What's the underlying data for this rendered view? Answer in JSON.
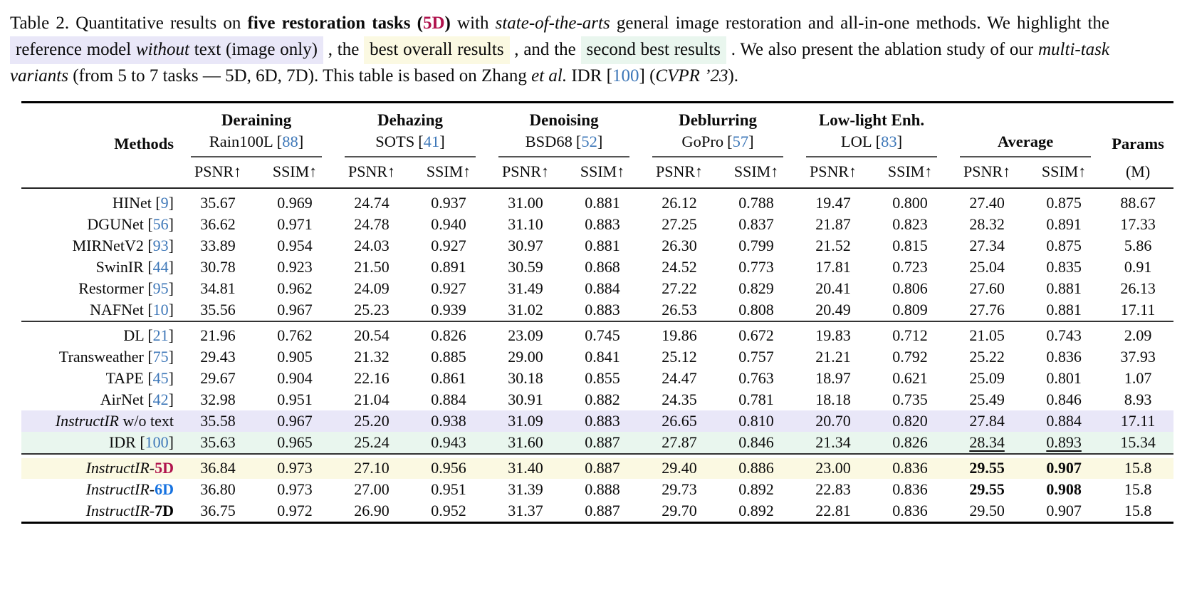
{
  "colors": {
    "highlight_reference": "#e9e7f8",
    "highlight_best": "#fbf9e2",
    "highlight_second": "#e9f6ee",
    "citation_blue": "#3d77b8",
    "red_5d": "#b0134d",
    "blue_6d": "#1672e0"
  },
  "strings": {
    "bracket_open": "[",
    "bracket_close": "]"
  },
  "caption": {
    "intro": "Table 2.  Quantitative results on ",
    "tasks_bold": "five restoration tasks (",
    "tasks_5d": "5D",
    "tasks_close": ")",
    "with_text": " with ",
    "sota_italic": "state-of-the-arts",
    "mid1": " general image restoration and all-in-one methods. We highlight the ",
    "ref_pre": "reference model ",
    "ref_italic": "without",
    "ref_post": " text (image only)",
    "mid2": " , the ",
    "best_text": "best overall results",
    "mid3": " , and the ",
    "second_text": "second best results",
    "mid4": " . We also present the ablation study of our ",
    "variants_italic": "multi-task variants",
    "mid5": " (from 5 to 7 tasks — 5D, 6D, 7D). This table is based on Zhang ",
    "etal_italic": "et al.",
    "mid6": " IDR ",
    "cite_open": "[",
    "cite_num": "100",
    "cite_close": "]",
    "mid7": " (",
    "cvpr_italic": "CVPR ’23",
    "end": ")."
  },
  "table": {
    "header": {
      "methods_label": "Methods",
      "psnr_label": "PSNR↑",
      "ssim_label": "SSIM↑",
      "average_label": "Average",
      "params_label": "Params",
      "params_unit": "(M)",
      "groups": [
        {
          "task": "Deraining",
          "dataset": "Rain100L",
          "cite_num": "88"
        },
        {
          "task": "Dehazing",
          "dataset": "SOTS",
          "cite_num": "41"
        },
        {
          "task": "Denoising",
          "dataset": "BSD68",
          "cite_num": "52"
        },
        {
          "task": "Deblurring",
          "dataset": "GoPro",
          "cite_num": "57"
        },
        {
          "task": "Low-light Enh.",
          "dataset": "LOL",
          "cite_num": "83"
        }
      ]
    },
    "groups": [
      {
        "rows": [
          {
            "method": {
              "plain": "HINet",
              "cite": "9"
            },
            "values": [
              "35.67",
              "0.969",
              "24.74",
              "0.937",
              "31.00",
              "0.881",
              "26.12",
              "0.788",
              "19.47",
              "0.800",
              "27.40",
              "0.875"
            ],
            "params": "88.67"
          },
          {
            "method": {
              "plain": "DGUNet",
              "cite": "56"
            },
            "values": [
              "36.62",
              "0.971",
              "24.78",
              "0.940",
              "31.10",
              "0.883",
              "27.25",
              "0.837",
              "21.87",
              "0.823",
              "28.32",
              "0.891"
            ],
            "params": "17.33"
          },
          {
            "method": {
              "plain": "MIRNetV2",
              "cite": "93"
            },
            "values": [
              "33.89",
              "0.954",
              "24.03",
              "0.927",
              "30.97",
              "0.881",
              "26.30",
              "0.799",
              "21.52",
              "0.815",
              "27.34",
              "0.875"
            ],
            "params": "5.86"
          },
          {
            "method": {
              "plain": "SwinIR",
              "cite": "44"
            },
            "values": [
              "30.78",
              "0.923",
              "21.50",
              "0.891",
              "30.59",
              "0.868",
              "24.52",
              "0.773",
              "17.81",
              "0.723",
              "25.04",
              "0.835"
            ],
            "params": "0.91"
          },
          {
            "method": {
              "plain": "Restormer",
              "cite": "95"
            },
            "values": [
              "34.81",
              "0.962",
              "24.09",
              "0.927",
              "31.49",
              "0.884",
              "27.22",
              "0.829",
              "20.41",
              "0.806",
              "27.60",
              "0.881"
            ],
            "params": "26.13"
          },
          {
            "method": {
              "plain": "NAFNet",
              "cite": "10"
            },
            "values": [
              "35.56",
              "0.967",
              "25.23",
              "0.939",
              "31.02",
              "0.883",
              "26.53",
              "0.808",
              "20.49",
              "0.809",
              "27.76",
              "0.881"
            ],
            "params": "17.11"
          }
        ]
      },
      {
        "rows": [
          {
            "method": {
              "plain": "DL",
              "cite": "21"
            },
            "values": [
              "21.96",
              "0.762",
              "20.54",
              "0.826",
              "23.09",
              "0.745",
              "19.86",
              "0.672",
              "19.83",
              "0.712",
              "21.05",
              "0.743"
            ],
            "params": "2.09"
          },
          {
            "method": {
              "plain": "Transweather",
              "cite": "75"
            },
            "values": [
              "29.43",
              "0.905",
              "21.32",
              "0.885",
              "29.00",
              "0.841",
              "25.12",
              "0.757",
              "21.21",
              "0.792",
              "25.22",
              "0.836"
            ],
            "params": "37.93"
          },
          {
            "method": {
              "plain": "TAPE",
              "cite": "45"
            },
            "values": [
              "29.67",
              "0.904",
              "22.16",
              "0.861",
              "30.18",
              "0.855",
              "24.47",
              "0.763",
              "18.97",
              "0.621",
              "25.09",
              "0.801"
            ],
            "params": "1.07"
          },
          {
            "method": {
              "plain": "AirNet",
              "cite": "42"
            },
            "values": [
              "32.98",
              "0.951",
              "21.04",
              "0.884",
              "30.91",
              "0.882",
              "24.35",
              "0.781",
              "18.18",
              "0.735",
              "25.49",
              "0.846"
            ],
            "params": "8.93"
          },
          {
            "method": {
              "italic": "InstructIR",
              "plain": " w/o text"
            },
            "highlight": "highlight_reference",
            "values": [
              "35.58",
              "0.967",
              "25.20",
              "0.938",
              "31.09",
              "0.883",
              "26.65",
              "0.810",
              "20.70",
              "0.820",
              "27.84",
              "0.884"
            ],
            "params": "17.11"
          },
          {
            "method": {
              "plain": "IDR",
              "cite": "100"
            },
            "highlight": "highlight_second",
            "values": [
              "35.63",
              "0.965",
              "25.24",
              "0.943",
              "31.60",
              "0.887",
              "27.87",
              "0.846",
              "21.34",
              "0.826",
              "28.34",
              "0.893"
            ],
            "value_styles": {
              "10": "underline",
              "11": "underline"
            },
            "params": "15.34"
          }
        ]
      },
      {
        "rows": [
          {
            "method": {
              "italic": "InstructIR",
              "plain": "-",
              "suffix": "5D",
              "suffix_color": "#b0134d"
            },
            "highlight": "highlight_best",
            "values": [
              "36.84",
              "0.973",
              "27.10",
              "0.956",
              "31.40",
              "0.887",
              "29.40",
              "0.886",
              "23.00",
              "0.836",
              "29.55",
              "0.907"
            ],
            "value_styles": {
              "10": "bold",
              "11": "bold"
            },
            "params": "15.8"
          },
          {
            "method": {
              "italic": "InstructIR",
              "plain": "-",
              "suffix": "6D",
              "suffix_color": "#1672e0"
            },
            "values": [
              "36.80",
              "0.973",
              "27.00",
              "0.951",
              "31.39",
              "0.888",
              "29.73",
              "0.892",
              "22.83",
              "0.836",
              "29.55",
              "0.908"
            ],
            "value_styles": {
              "10": "bold",
              "11": "bold"
            },
            "params": "15.8"
          },
          {
            "method": {
              "italic": "InstructIR",
              "plain": "-",
              "suffix": "7D",
              "suffix_color": "#000000"
            },
            "values": [
              "36.75",
              "0.972",
              "26.90",
              "0.952",
              "31.37",
              "0.887",
              "29.70",
              "0.892",
              "22.81",
              "0.836",
              "29.50",
              "0.907"
            ],
            "params": "15.8"
          }
        ]
      }
    ]
  }
}
